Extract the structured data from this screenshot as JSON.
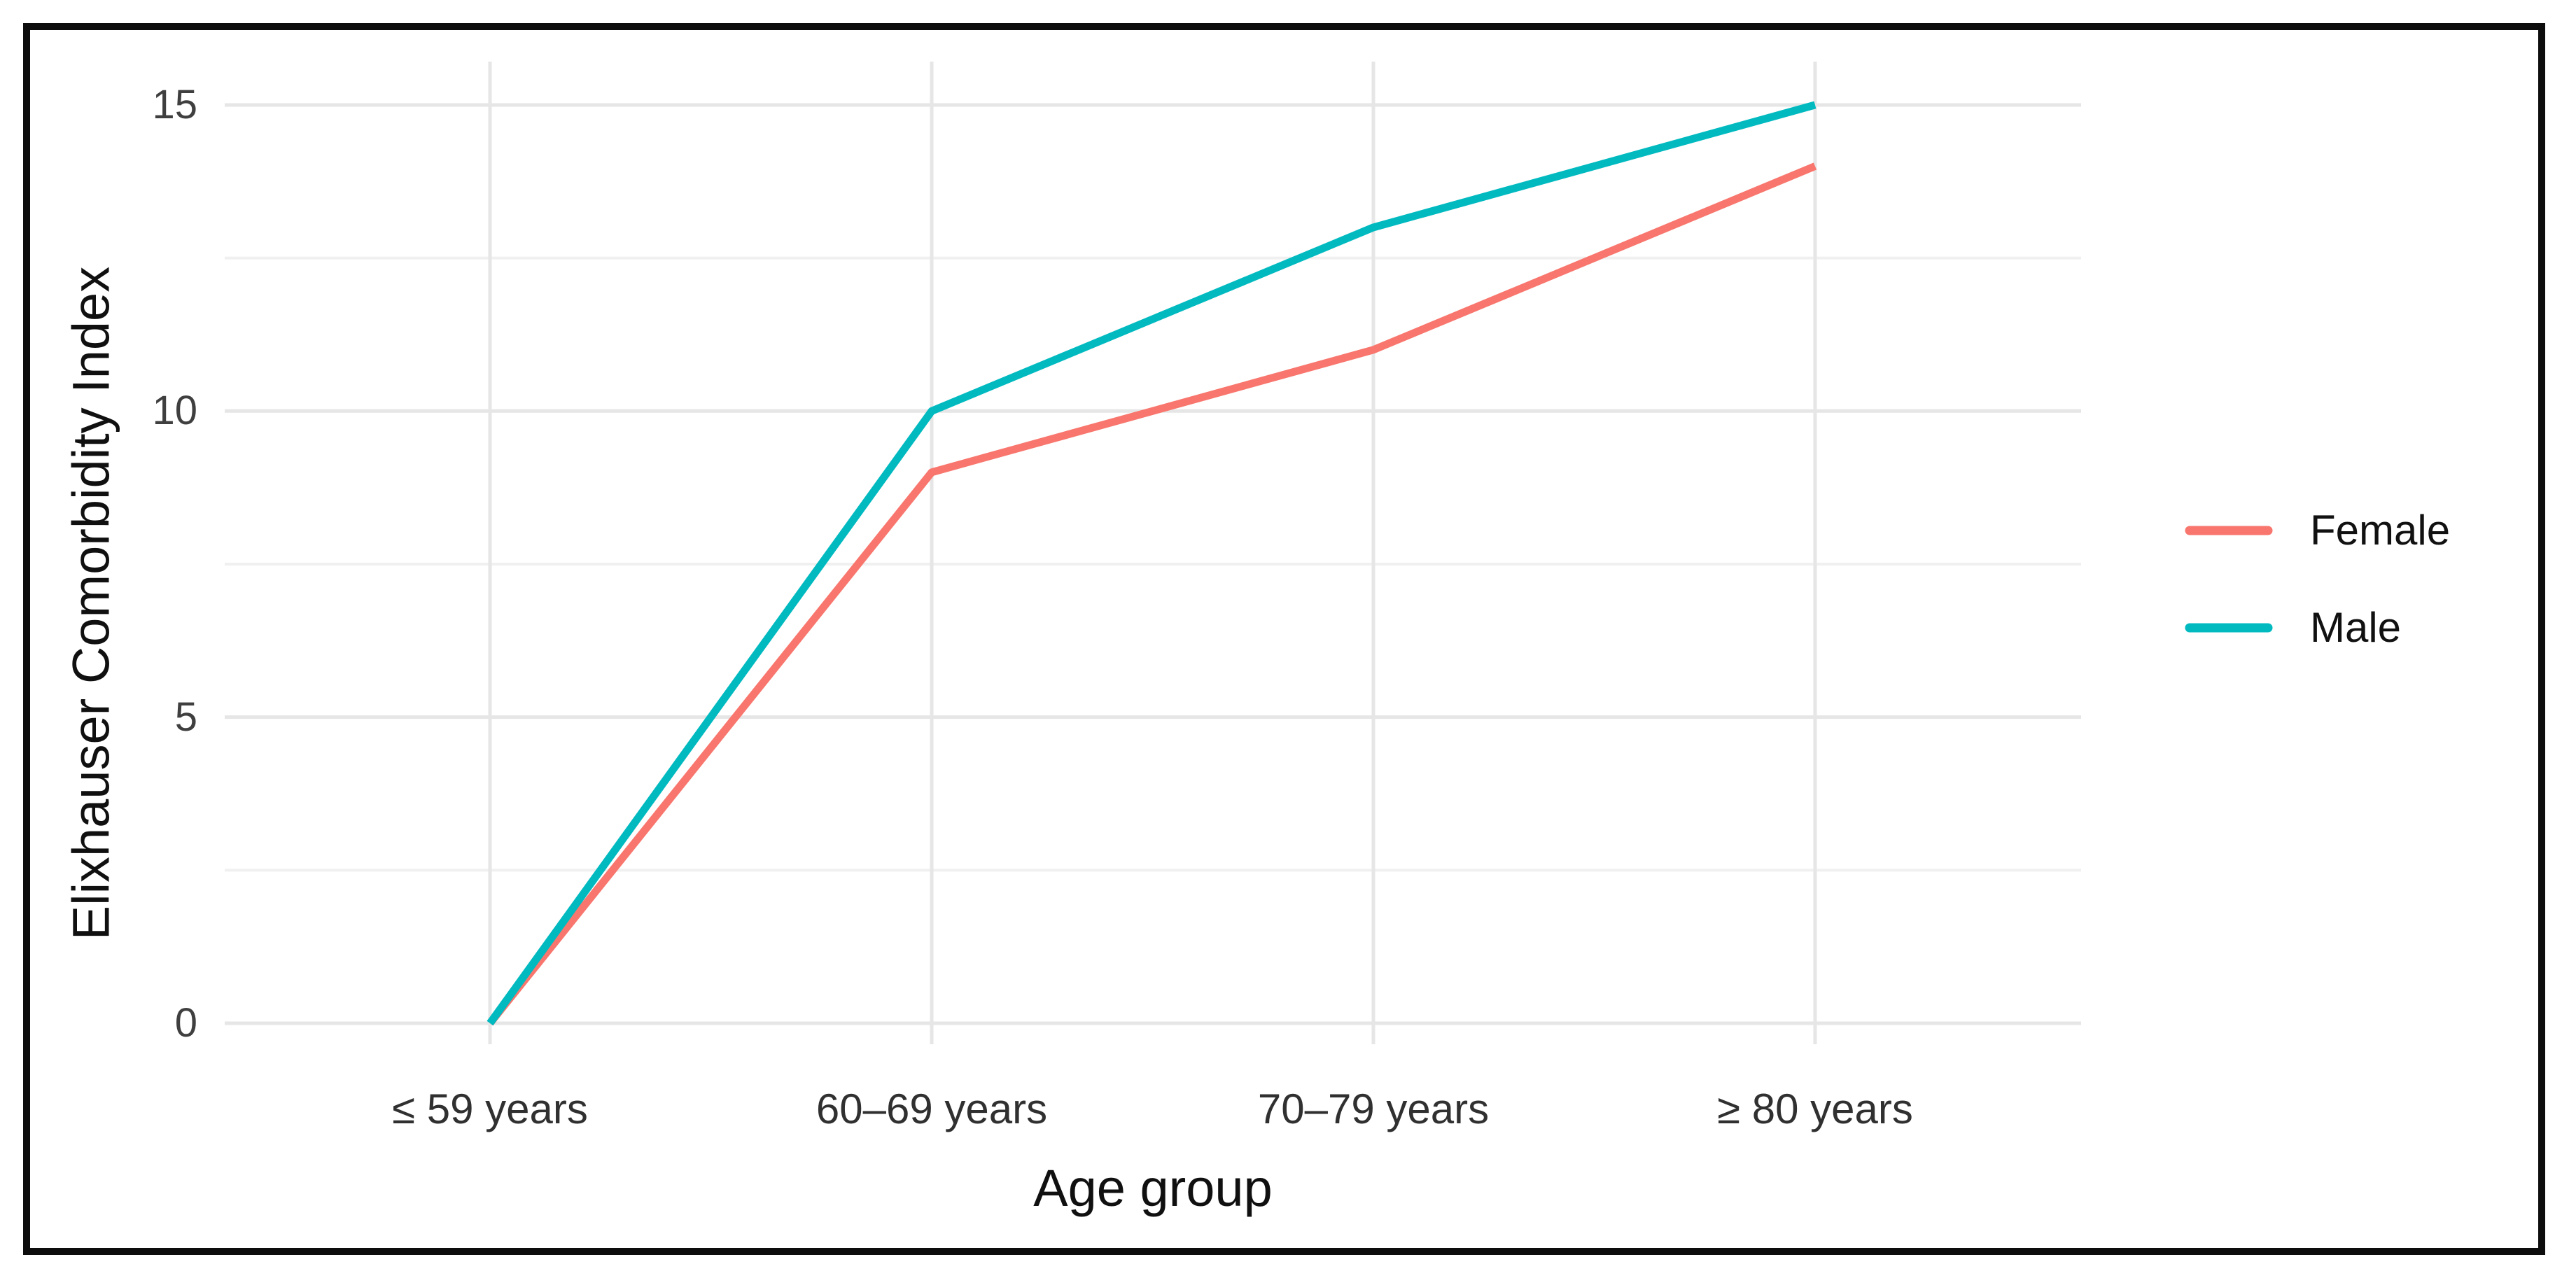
{
  "figure": {
    "background": "#ffffff",
    "frame_color": "#0d0d0d",
    "grid_major_color": "#e6e6e6",
    "grid_minor_color": "#f0f0f0"
  },
  "chart_data": {
    "type": "line",
    "title": "",
    "categories": [
      "≤ 59 years",
      "60–69 years",
      "70–79 years",
      "≥ 80 years"
    ],
    "series": [
      {
        "name": "Female",
        "color": "#F8766D",
        "values": [
          0,
          9,
          11,
          14
        ]
      },
      {
        "name": "Male",
        "color": "#00BAC0",
        "values": [
          0,
          10,
          13,
          15
        ]
      }
    ],
    "xlabel": "Age group",
    "ylabel": "Elixhauser Comorbidity Index",
    "ylim": [
      0,
      15
    ],
    "y_ticks": [
      0,
      5,
      10,
      15
    ],
    "y_minor_ticks": [
      2.5,
      7.5,
      12.5
    ],
    "grid": true,
    "legend_position": "right"
  }
}
